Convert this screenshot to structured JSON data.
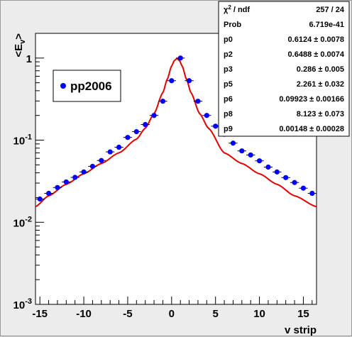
{
  "chart_data": {
    "type": "scatter",
    "xlabel": "v strip",
    "ylabel": "<E_v>",
    "xlim": [
      -15.5,
      16.5
    ],
    "ylim": [
      0.001,
      2.0
    ],
    "yscale": "log",
    "grid": false,
    "x_ticks": [
      -15,
      -10,
      -5,
      0,
      5,
      10,
      15
    ],
    "y_ticks": [
      {
        "value": 0.001,
        "base": "10",
        "exp": "-3"
      },
      {
        "value": 0.01,
        "base": "10",
        "exp": "-2"
      },
      {
        "value": 0.1,
        "base": "10",
        "exp": "-1"
      },
      {
        "value": 1,
        "base": "1",
        "exp": ""
      }
    ],
    "legend": {
      "placement": "top-left",
      "entries": [
        "pp2006"
      ]
    },
    "series": [
      {
        "name": "pp2006",
        "color": "#0000ff",
        "x": [
          -15,
          -14,
          -13,
          -12,
          -11,
          -10,
          -9,
          -8,
          -7,
          -6,
          -5,
          -4,
          -3,
          -2,
          -1,
          0,
          1,
          2,
          3,
          4,
          5,
          6,
          7,
          8,
          9,
          10,
          11,
          12,
          13,
          14,
          15,
          16
        ],
        "y": [
          0.0192,
          0.0225,
          0.0265,
          0.031,
          0.0352,
          0.041,
          0.048,
          0.0565,
          0.072,
          0.082,
          0.108,
          0.127,
          0.155,
          0.2,
          0.298,
          0.53,
          1.0,
          0.53,
          0.298,
          0.2,
          0.148,
          0.118,
          0.092,
          0.074,
          0.066,
          0.056,
          0.047,
          0.041,
          0.035,
          0.0305,
          0.026,
          0.0225
        ]
      }
    ],
    "fit": {
      "color": "#e00000",
      "center": 0.6,
      "x": [
        -15.5,
        -14,
        -12,
        -10,
        -8,
        -6,
        -4,
        -3,
        -2,
        -1,
        -0.5,
        0,
        0.3,
        0.6,
        0.9,
        1.2,
        1.7,
        2.2,
        3.2,
        4.2,
        6,
        8,
        10,
        12,
        14,
        16.5
      ],
      "y": [
        0.0155,
        0.021,
        0.029,
        0.039,
        0.052,
        0.07,
        0.103,
        0.14,
        0.21,
        0.38,
        0.55,
        0.8,
        0.93,
        0.985,
        0.93,
        0.8,
        0.55,
        0.38,
        0.21,
        0.14,
        0.07,
        0.052,
        0.039,
        0.029,
        0.021,
        0.0155
      ]
    },
    "stats": [
      {
        "label": "χ² / ndf",
        "value": "257 / 24"
      },
      {
        "label": "Prob",
        "value": "6.719e-41"
      },
      {
        "label": "p0",
        "value": "0.6124 ± 0.0078"
      },
      {
        "label": "p2",
        "value": "0.6488 ± 0.0074"
      },
      {
        "label": "p3",
        "value": "0.286 ± 0.005"
      },
      {
        "label": "p5",
        "value": "2.261 ± 0.032"
      },
      {
        "label": "p6",
        "value": "0.09923 ± 0.00166"
      },
      {
        "label": "p8",
        "value": "8.123 ± 0.073"
      },
      {
        "label": "p9",
        "value": "0.00148 ± 0.00028"
      }
    ]
  }
}
